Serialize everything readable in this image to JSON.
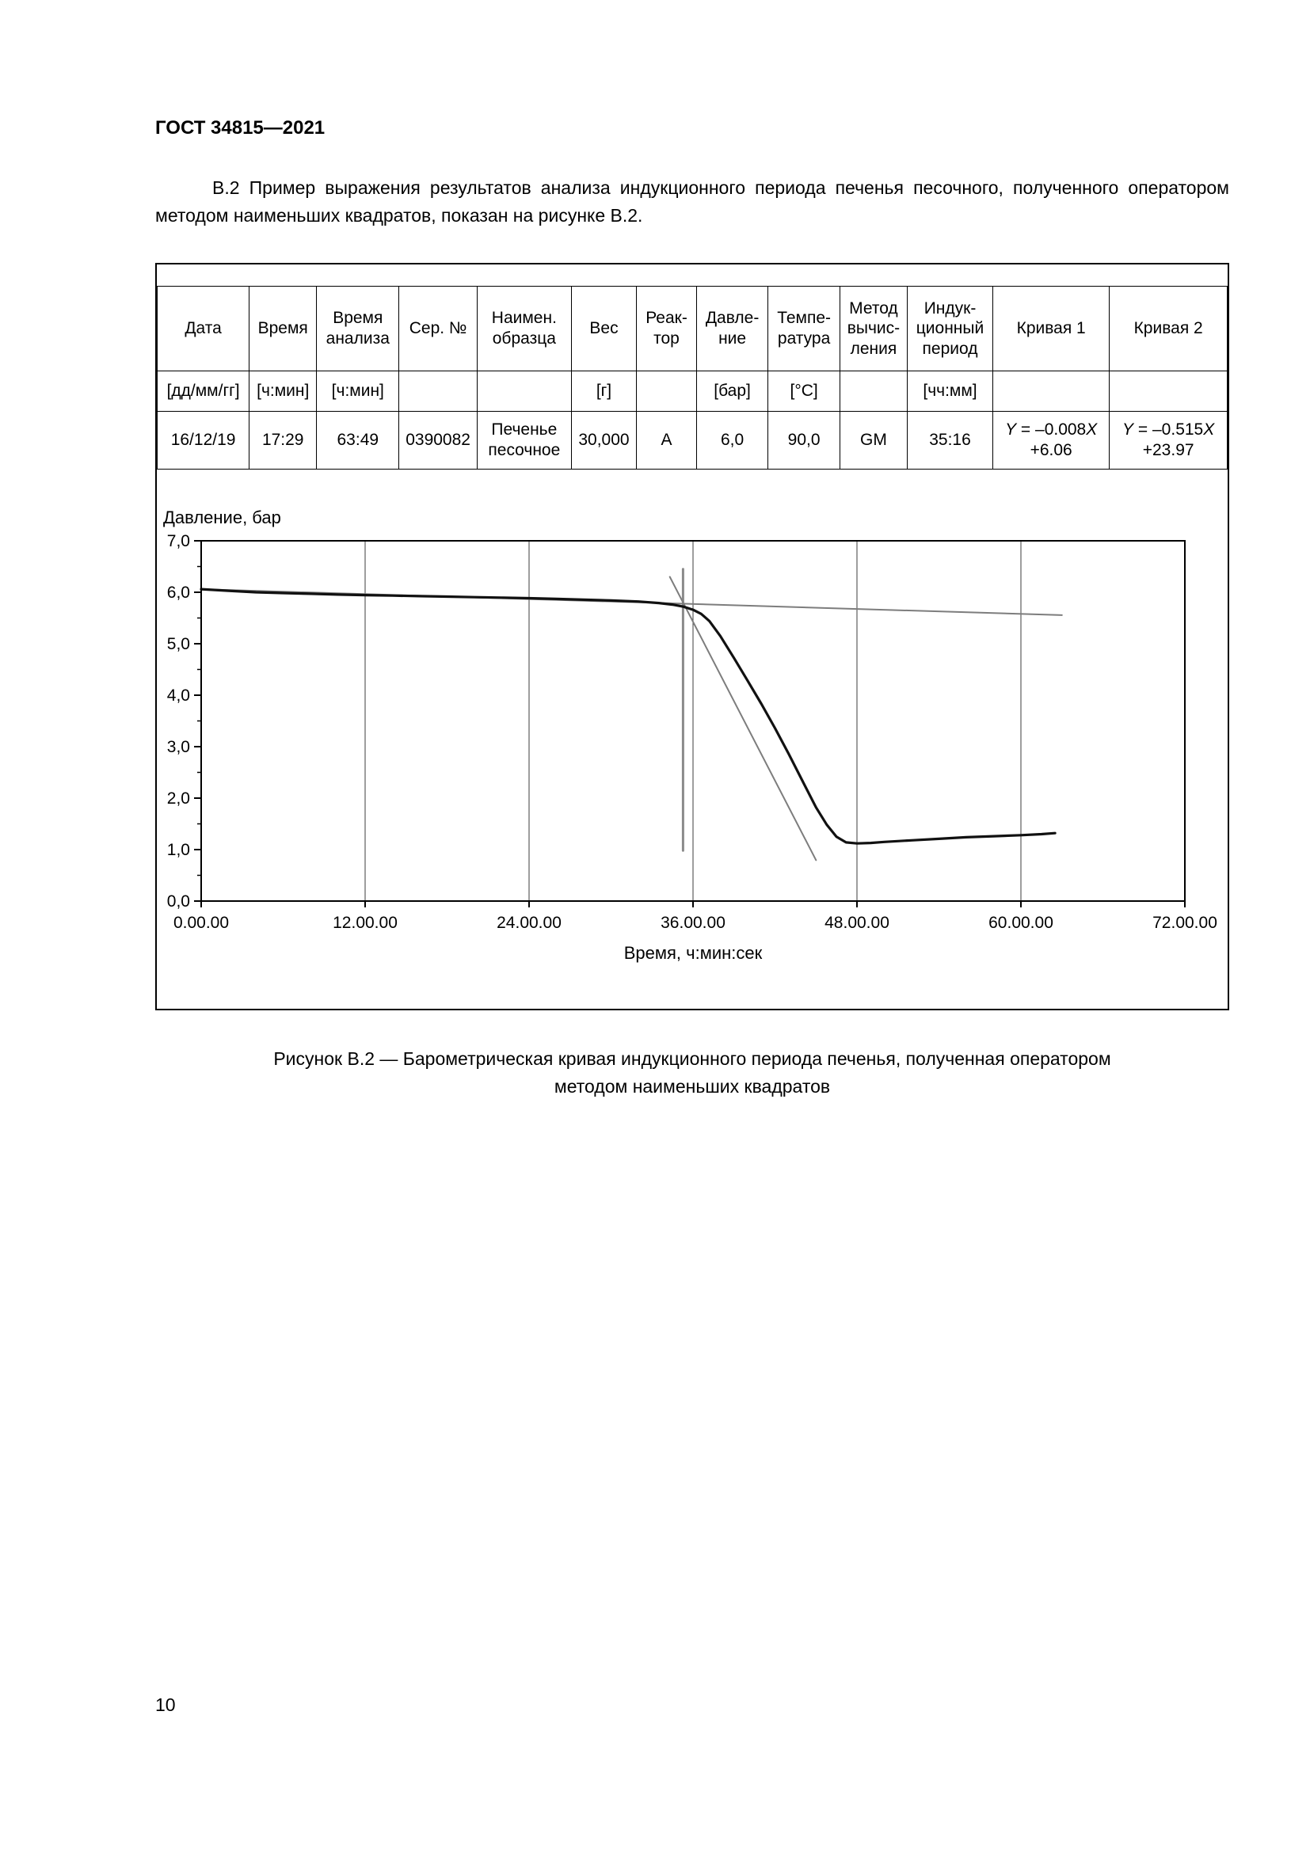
{
  "page": {
    "header": "ГОСТ 34815—2021",
    "paragraph": "В.2 Пример выражения результатов анализа индукционного периода печенья песочного, полученного оператором методом наименьших квадратов, показан на рисунке В.2.",
    "caption": "Рисунок В.2 — Барометрическая кривая индукционного периода печенья, полученная оператором\nметодом наименьших квадратов",
    "page_number": "10"
  },
  "table": {
    "columns": [
      {
        "header": "Дата",
        "unit": "[дд/мм/гг]",
        "value": "16/12/19"
      },
      {
        "header": "Время",
        "unit": "[ч:мин]",
        "value": "17:29"
      },
      {
        "header": "Время\nанализа",
        "unit": "[ч:мин]",
        "value": "63:49"
      },
      {
        "header": "Сер. №",
        "unit": "",
        "value": "0390082"
      },
      {
        "header": "Наимен.\nобразца",
        "unit": "",
        "value": "Печенье\nпесочное"
      },
      {
        "header": "Вес",
        "unit": "[г]",
        "value": "30,000"
      },
      {
        "header": "Реак-\nтор",
        "unit": "",
        "value": "А"
      },
      {
        "header": "Давле-\nние",
        "unit": "[бар]",
        "value": "6,0"
      },
      {
        "header": "Темпе-\nратура",
        "unit": "[°С]",
        "value": "90,0"
      },
      {
        "header": "Метод\nвычис-\nления",
        "unit": "",
        "value": "GM"
      },
      {
        "header": "Индук-\nционный\nпериод",
        "unit": "[чч:мм]",
        "value": "35:16"
      },
      {
        "header": "Кривая 1",
        "unit": "",
        "value": "Y = –0.008X\n+6.06",
        "equation": true
      },
      {
        "header": "Кривая 2",
        "unit": "",
        "value": "Y = –0.515X\n+23.97",
        "equation": true
      }
    ]
  },
  "chart_data": {
    "type": "line",
    "title": "",
    "ylabel": "Давление, бар",
    "xlabel": "Время, ч:мин:сек",
    "xlim_hours": [
      0,
      72
    ],
    "ylim": [
      0,
      7
    ],
    "x_tick_hours": [
      0,
      12,
      24,
      36,
      48,
      60,
      72
    ],
    "x_tick_labels": [
      "0.00.00",
      "12.00.00",
      "24.00.00",
      "36.00.00",
      "48.00.00",
      "60.00.00",
      "72.00.00"
    ],
    "y_tick_values": [
      0,
      1,
      2,
      3,
      4,
      5,
      6,
      7
    ],
    "y_tick_labels": [
      "0,0",
      "1,0",
      "2,0",
      "3,0",
      "4,0",
      "5,0",
      "6,0",
      "7,0"
    ],
    "y_minor_step": 0.5,
    "grid": "vertical",
    "legend": "none",
    "induction_period": "35:16",
    "series": [
      {
        "name": "induction-period-marker",
        "color": "#8a8a8a",
        "width": 3,
        "points": [
          [
            35.27,
            0.98
          ],
          [
            35.27,
            6.45
          ]
        ]
      },
      {
        "name": "least-squares-line-1",
        "equation": "Y = –0.008X + 6.06",
        "color": "#7d7d7d",
        "width": 2,
        "points": [
          [
            0,
            6.06
          ],
          [
            63,
            5.556
          ]
        ]
      },
      {
        "name": "least-squares-line-2",
        "equation": "Y = –0.515X + 23.97",
        "color": "#7d7d7d",
        "width": 2,
        "points": [
          [
            34.3,
            6.3
          ],
          [
            45.0,
            0.795
          ]
        ]
      },
      {
        "name": "pressure-curve",
        "color": "#111111",
        "width": 3.2,
        "points": [
          [
            0,
            6.06
          ],
          [
            2,
            6.03
          ],
          [
            4,
            6.0
          ],
          [
            6,
            5.985
          ],
          [
            8,
            5.97
          ],
          [
            10,
            5.955
          ],
          [
            12,
            5.945
          ],
          [
            14,
            5.935
          ],
          [
            16,
            5.925
          ],
          [
            18,
            5.915
          ],
          [
            20,
            5.905
          ],
          [
            22,
            5.895
          ],
          [
            24,
            5.885
          ],
          [
            26,
            5.87
          ],
          [
            28,
            5.855
          ],
          [
            30,
            5.84
          ],
          [
            32,
            5.82
          ],
          [
            33.5,
            5.79
          ],
          [
            34.5,
            5.76
          ],
          [
            35.3,
            5.72
          ],
          [
            36,
            5.66
          ],
          [
            36.6,
            5.58
          ],
          [
            37.2,
            5.44
          ],
          [
            38,
            5.15
          ],
          [
            39,
            4.72
          ],
          [
            40,
            4.28
          ],
          [
            41,
            3.83
          ],
          [
            42,
            3.36
          ],
          [
            43,
            2.86
          ],
          [
            44,
            2.34
          ],
          [
            45,
            1.82
          ],
          [
            45.8,
            1.48
          ],
          [
            46.5,
            1.25
          ],
          [
            47.2,
            1.14
          ],
          [
            48,
            1.12
          ],
          [
            49,
            1.13
          ],
          [
            50,
            1.15
          ],
          [
            52,
            1.18
          ],
          [
            54,
            1.21
          ],
          [
            56,
            1.24
          ],
          [
            58,
            1.26
          ],
          [
            60,
            1.28
          ],
          [
            61.5,
            1.3
          ],
          [
            62.5,
            1.32
          ]
        ]
      }
    ]
  }
}
